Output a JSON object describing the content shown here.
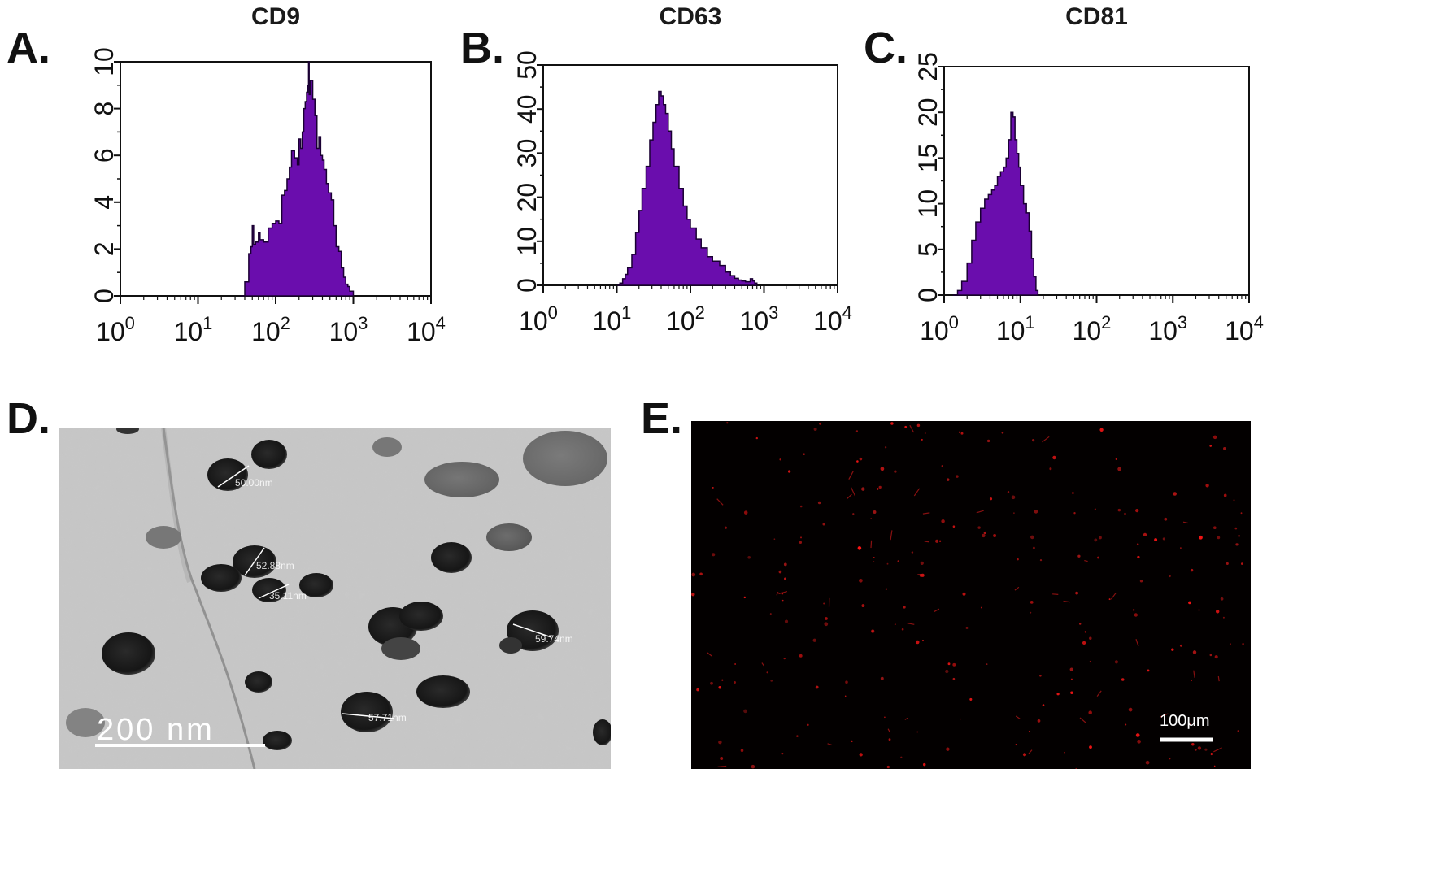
{
  "panels": {
    "A": "A.",
    "B": "B.",
    "C": "C.",
    "D": "D.",
    "E": "E."
  },
  "chart_data": [
    {
      "type": "area",
      "panel": "A",
      "title": "CD9",
      "x_scale": "log",
      "xlim": [
        1,
        10000
      ],
      "ylim": [
        0,
        10
      ],
      "x_ticks": [
        "10^0",
        "10^1",
        "10^2",
        "10^3",
        "10^4"
      ],
      "y_ticks": [
        "0",
        "2",
        "4",
        "6",
        "8",
        "10"
      ],
      "grid": false,
      "color": "#6a0dad",
      "x": [
        35,
        40,
        45,
        48,
        50,
        52,
        55,
        60,
        63,
        70,
        80,
        90,
        100,
        110,
        120,
        130,
        140,
        150,
        160,
        175,
        190,
        200,
        210,
        220,
        230,
        240,
        250,
        260,
        265,
        270,
        280,
        300,
        320,
        340,
        360,
        380,
        400,
        420,
        450,
        480,
        520,
        560,
        600,
        650,
        700,
        750,
        800,
        850,
        900,
        1000
      ],
      "values": [
        0,
        0.6,
        1.8,
        2.1,
        3.0,
        2.2,
        2.3,
        2.7,
        2.4,
        2.3,
        2.9,
        3.1,
        3.2,
        3.1,
        4.3,
        4.5,
        5.0,
        5.5,
        6.2,
        5.9,
        5.6,
        6.7,
        6.3,
        7.0,
        8.0,
        8.3,
        8.7,
        9.0,
        10.0,
        8.6,
        9.2,
        8.4,
        7.7,
        6.3,
        6.8,
        6.0,
        5.8,
        5.4,
        4.8,
        4.4,
        4.1,
        3.0,
        2.1,
        1.9,
        1.2,
        0.8,
        0.5,
        0.4,
        0.2,
        0
      ]
    },
    {
      "type": "area",
      "panel": "B",
      "title": "CD63",
      "x_scale": "log",
      "xlim": [
        1,
        10000
      ],
      "ylim": [
        0,
        50
      ],
      "x_ticks": [
        "10^0",
        "10^1",
        "10^2",
        "10^3",
        "10^4"
      ],
      "y_ticks": [
        "0",
        "10",
        "20",
        "30",
        "40",
        "50"
      ],
      "grid": false,
      "color": "#6a0dad",
      "x": [
        10,
        11,
        12,
        13,
        14,
        16,
        18,
        20,
        22,
        25,
        28,
        31,
        34,
        37,
        40,
        43,
        46,
        50,
        55,
        60,
        70,
        80,
        90,
        100,
        120,
        140,
        170,
        200,
        250,
        300,
        350,
        400,
        450,
        500,
        560,
        600,
        650,
        700,
        750,
        800
      ],
      "values": [
        0,
        0.5,
        1.5,
        2.5,
        4,
        7,
        12,
        17,
        22,
        27,
        33,
        37,
        41,
        44,
        43,
        41,
        39,
        35,
        31,
        27,
        22,
        18,
        15,
        13,
        10.5,
        8.5,
        6.5,
        5.5,
        4.5,
        3,
        2.2,
        1.6,
        1.2,
        1.0,
        0.8,
        0.8,
        1.5,
        1.0,
        0.5,
        0
      ]
    },
    {
      "type": "area",
      "panel": "C",
      "title": "CD81",
      "x_scale": "log",
      "xlim": [
        1,
        10000
      ],
      "ylim": [
        0,
        25
      ],
      "x_ticks": [
        "10^0",
        "10^1",
        "10^2",
        "10^3",
        "10^4"
      ],
      "y_ticks": [
        "0",
        "5",
        "10",
        "15",
        "20",
        "25"
      ],
      "grid": false,
      "color": "#6a0dad",
      "x": [
        1.3,
        1.5,
        1.7,
        2.0,
        2.3,
        2.6,
        3.0,
        3.4,
        3.8,
        4.2,
        4.6,
        5.0,
        5.5,
        6.0,
        6.5,
        7.0,
        7.5,
        8.0,
        8.5,
        9.0,
        9.5,
        10,
        11,
        12,
        13,
        14,
        15,
        16,
        17
      ],
      "values": [
        0,
        0.5,
        1.5,
        3.5,
        6,
        8,
        9.5,
        10.5,
        11,
        11.5,
        12,
        13,
        13.5,
        14,
        15,
        17,
        20,
        19.5,
        17,
        15.5,
        14,
        12,
        10,
        9,
        7,
        4,
        2,
        0.5,
        0
      ]
    }
  ],
  "tem": {
    "scale_label": "200  nm",
    "measurements": [
      "50.00nm",
      "52.88nm",
      "35.11nm",
      "59.74nm",
      "57.71nm"
    ]
  },
  "fluorescence": {
    "scale_label": "100μm"
  }
}
